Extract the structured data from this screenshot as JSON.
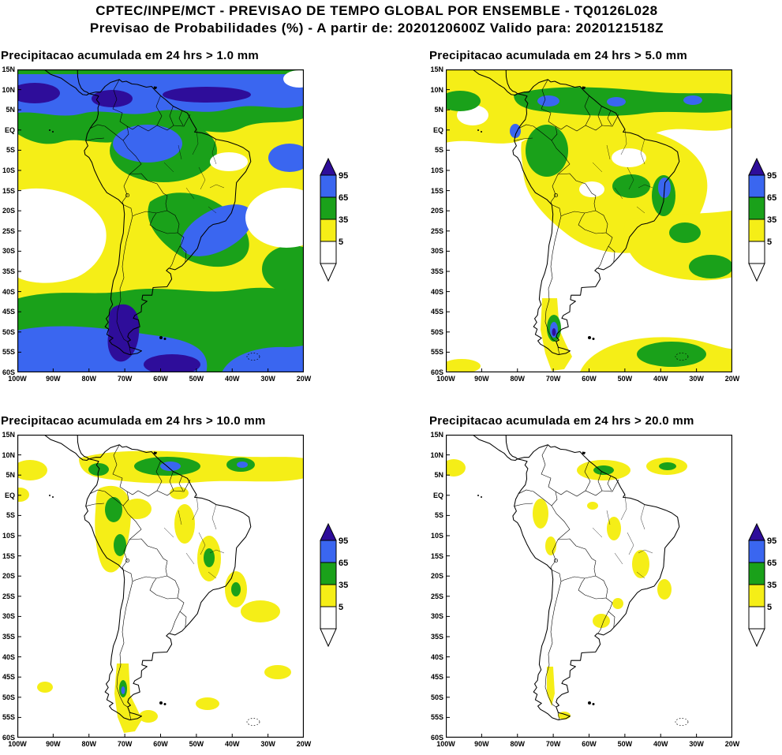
{
  "header": {
    "line1": "CPTEC/INPE/MCT - PREVISAO DE TEMPO GLOBAL POR ENSEMBLE - TQ0126L028",
    "line2": "Previsao de Probabilidades (%) -  A partir de: 2020120600Z   Valido para: 2020121518Z"
  },
  "panels": [
    {
      "title": "Precipitacao acumulada em 24 hrs > 1.0 mm"
    },
    {
      "title": "Precipitacao acumulada em 24 hrs > 5.0 mm"
    },
    {
      "title": "Precipitacao acumulada em 24 hrs > 10.0 mm"
    },
    {
      "title": "Precipitacao acumulada em 24 hrs > 20.0 mm"
    }
  ],
  "axes": {
    "lat_ticks": [
      "15N",
      "10N",
      "5N",
      "EQ",
      "5S",
      "10S",
      "15S",
      "20S",
      "25S",
      "30S",
      "35S",
      "40S",
      "45S",
      "50S",
      "55S",
      "60S"
    ],
    "lon_ticks": [
      "100W",
      "90W",
      "80W",
      "70W",
      "60W",
      "50W",
      "40W",
      "30W",
      "20W"
    ]
  },
  "legend": {
    "labels": [
      "95",
      "65",
      "35",
      "5"
    ],
    "colors": {
      "gt95": "#2e0d9a",
      "p65_95": "#3a66f0",
      "p35_65": "#1aa11a",
      "p5_35": "#f5ee17",
      "lt5": "#ffffff"
    }
  },
  "chart_data": {
    "type": "heatmap",
    "variant": "filled-contour probability maps, 2x2 panel figure over South America",
    "institution": "CPTEC/INPE/MCT",
    "product": "PREVISAO DE TEMPO GLOBAL POR ENSEMBLE",
    "model_resolution_tag": "TQ0126L028",
    "variable": "Previsao de Probabilidades (%)",
    "init_time": "2020120600Z",
    "valid_time": "2020121518Z",
    "domain": {
      "lon_deg": [
        -100,
        -20
      ],
      "lat_deg": [
        -60,
        15
      ]
    },
    "lon_tick_labels": [
      "100W",
      "90W",
      "80W",
      "70W",
      "60W",
      "50W",
      "40W",
      "30W",
      "20W"
    ],
    "lat_tick_labels": [
      "15N",
      "10N",
      "5N",
      "EQ",
      "5S",
      "10S",
      "15S",
      "20S",
      "25S",
      "30S",
      "35S",
      "40S",
      "45S",
      "50S",
      "55S",
      "60S"
    ],
    "contour_levels_percent": [
      5,
      35,
      65,
      95
    ],
    "colorbar": [
      {
        "bin": ">95%",
        "color": "#2e0d9a"
      },
      {
        "bin": "65-95%",
        "color": "#3a66f0"
      },
      {
        "bin": "35-65%",
        "color": "#1aa11a"
      },
      {
        "bin": "5-35%",
        "color": "#f5ee17"
      },
      {
        "bin": "<5%",
        "color": "#ffffff"
      }
    ],
    "panels": [
      {
        "threshold_mm": 1.0,
        "title": "Precipitacao acumulada em 24 hrs > 1.0 mm",
        "pattern_summary": "Nearly the whole domain exceeds 5%. 65-95% over the ITCZ band (10N-EQ), western Amazon, southeast Brazil-Uruguay-NE Argentina and the 45S-60S storm track; >95% cores along 5N and over far-southern Chile near 50S; <5% only over the subtropical SE Pacific and a S Atlantic patch near 20-30S."
      },
      {
        "threshold_mm": 5.0,
        "title": "Precipitacao acumulada em 24 hrs > 5.0 mm",
        "pattern_summary": "5-35% over most of tropical South America, the tropical Atlantic and the 20-35S SW Atlantic; 35-65% along the ITCZ near 5N, over Peru/western Amazon, the east Brazil coast, a 25-30S Atlantic band and the 50-60S ocean; small 65-95% cores in the ITCZ, on the Ecuador coast, east Brazil and far-southern Chile."
      },
      {
        "threshold_mm": 10.0,
        "title": "Precipitacao acumulada em 24 hrs > 10.0 mm",
        "pattern_summary": "Mostly below 5%. 5-35% strips along the ITCZ (8N-3N), the Andes of Ecuador/Peru, diagonal bands over central-east Brazil, the SE Brazil coast and southern Chile; 35-65% cores near 5N between 60W-35W and along the Peruvian Andes; a small 65-95% core near 5N 57W."
      },
      {
        "threshold_mm": 20.0,
        "title": "Precipitacao acumulada em 24 hrs > 20.0 mm",
        "pattern_summary": "Predominantly below 5%. Scattered 5-35% patches along the ITCZ near 5N, coastal Peru, central Brazil, Paraguay/NE Argentina and southern Chile; two 35-65% cores in the Atlantic ITCZ near 5N 56W and 5N 38W."
      }
    ]
  }
}
